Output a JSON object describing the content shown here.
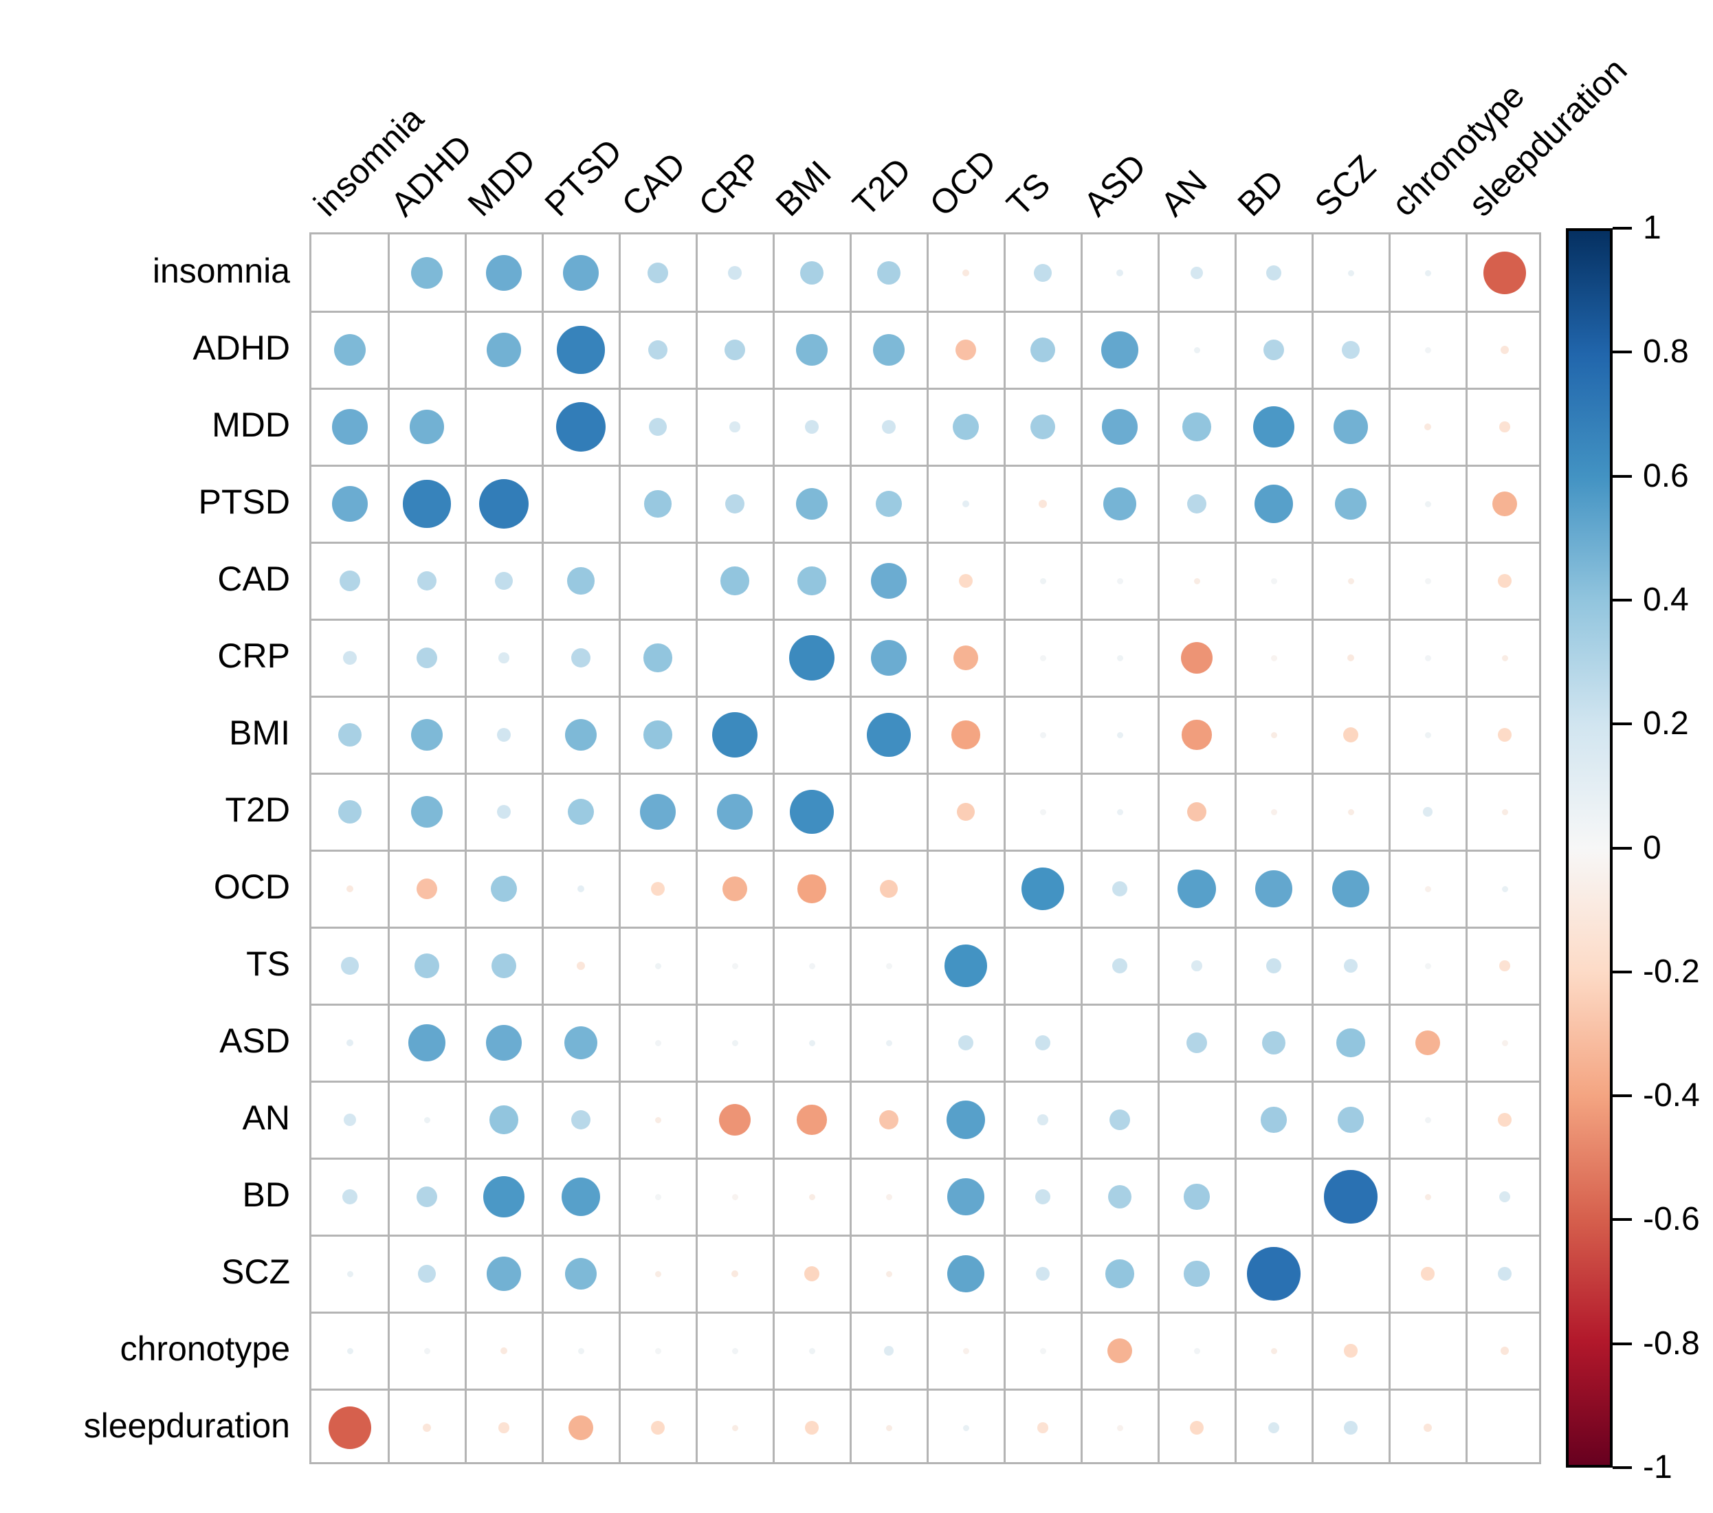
{
  "chart_data": {
    "type": "heatmap",
    "subtype": "correlation-circle-matrix",
    "title": "",
    "legend_position": "right",
    "grid": true,
    "variables": [
      "insomnia",
      "ADHD",
      "MDD",
      "PTSD",
      "CAD",
      "CRP",
      "BMI",
      "T2D",
      "OCD",
      "TS",
      "ASD",
      "AN",
      "BD",
      "SCZ",
      "chronotype",
      "sleepduration"
    ],
    "matrix": [
      [
        null,
        0.45,
        0.5,
        0.5,
        0.3,
        0.2,
        0.33,
        0.33,
        -0.1,
        0.25,
        0.1,
        0.18,
        0.22,
        0.08,
        0.08,
        -0.6
      ],
      [
        0.45,
        null,
        0.48,
        0.67,
        0.28,
        0.3,
        0.45,
        0.45,
        -0.3,
        0.35,
        0.52,
        0.06,
        0.3,
        0.25,
        0.03,
        -0.12
      ],
      [
        0.5,
        0.48,
        null,
        0.7,
        0.25,
        0.15,
        0.2,
        0.2,
        0.37,
        0.35,
        0.5,
        0.4,
        0.58,
        0.48,
        -0.1,
        -0.15
      ],
      [
        0.5,
        0.67,
        0.7,
        null,
        0.38,
        0.28,
        0.45,
        0.37,
        0.1,
        -0.12,
        0.47,
        0.28,
        0.55,
        0.45,
        0.05,
        -0.35
      ],
      [
        0.3,
        0.28,
        0.25,
        0.38,
        null,
        0.4,
        0.4,
        0.5,
        -0.2,
        0.05,
        0.03,
        -0.08,
        0.02,
        -0.08,
        0.02,
        -0.2
      ],
      [
        0.2,
        0.3,
        0.15,
        0.28,
        0.4,
        null,
        0.64,
        0.5,
        -0.35,
        0.02,
        0.05,
        -0.45,
        -0.03,
        -0.1,
        0.03,
        -0.08
      ],
      [
        0.33,
        0.45,
        0.2,
        0.45,
        0.4,
        0.64,
        null,
        0.62,
        -0.4,
        0.03,
        0.08,
        -0.42,
        -0.08,
        -0.22,
        0.05,
        -0.2
      ],
      [
        0.33,
        0.45,
        0.2,
        0.37,
        0.5,
        0.5,
        0.62,
        null,
        -0.25,
        0.02,
        0.07,
        -0.28,
        -0.05,
        -0.08,
        0.13,
        -0.08
      ],
      [
        -0.1,
        -0.3,
        0.37,
        0.1,
        -0.2,
        -0.35,
        -0.4,
        -0.25,
        null,
        0.6,
        0.22,
        0.55,
        0.52,
        0.53,
        -0.05,
        0.08
      ],
      [
        0.25,
        0.35,
        0.35,
        -0.12,
        0.05,
        0.02,
        0.03,
        0.02,
        0.6,
        null,
        0.22,
        0.15,
        0.22,
        0.2,
        0.02,
        -0.15
      ],
      [
        0.1,
        0.52,
        0.5,
        0.47,
        0.03,
        0.05,
        0.08,
        0.07,
        0.22,
        0.22,
        null,
        0.3,
        0.33,
        0.4,
        -0.35,
        -0.04
      ],
      [
        0.18,
        0.06,
        0.4,
        0.28,
        -0.08,
        -0.45,
        -0.42,
        -0.28,
        0.55,
        0.15,
        0.3,
        null,
        0.36,
        0.36,
        0.03,
        -0.2
      ],
      [
        0.22,
        0.3,
        0.58,
        0.55,
        0.02,
        -0.03,
        -0.08,
        -0.05,
        0.52,
        0.22,
        0.33,
        0.36,
        null,
        0.75,
        -0.08,
        0.16
      ],
      [
        0.08,
        0.25,
        0.48,
        0.45,
        -0.08,
        -0.1,
        -0.22,
        -0.08,
        0.53,
        0.2,
        0.4,
        0.36,
        0.75,
        null,
        -0.19,
        0.2
      ],
      [
        0.08,
        0.03,
        -0.1,
        0.05,
        0.02,
        0.03,
        0.05,
        0.13,
        -0.05,
        0.02,
        -0.35,
        0.03,
        -0.08,
        -0.19,
        null,
        -0.12
      ],
      [
        -0.6,
        -0.12,
        -0.15,
        -0.35,
        -0.2,
        -0.08,
        -0.2,
        -0.08,
        0.08,
        -0.15,
        -0.04,
        -0.2,
        0.16,
        0.2,
        -0.12,
        null
      ]
    ],
    "colorbar": {
      "min": -1,
      "max": 1,
      "tick_values": [
        1,
        0.8,
        0.6,
        0.4,
        0.2,
        0,
        -0.2,
        -0.4,
        -0.6,
        -0.8,
        -1
      ],
      "tick_labels": [
        "1",
        "0.8",
        "0.6",
        "0.4",
        "0.2",
        "0",
        "-0.2",
        "-0.4",
        "-0.6",
        "-0.8",
        "-1"
      ]
    },
    "palette_rdbu_reversed": [
      "#67001f",
      "#b2182b",
      "#d6604d",
      "#f4a582",
      "#fddbc7",
      "#f7f7f7",
      "#d1e5f0",
      "#92c5de",
      "#4393c3",
      "#2166ac",
      "#053061"
    ],
    "colors": {
      "grid_line": "#b4b4b4",
      "label_text": "#000000",
      "background": "#ffffff",
      "colorbar_border": "#000000"
    }
  }
}
